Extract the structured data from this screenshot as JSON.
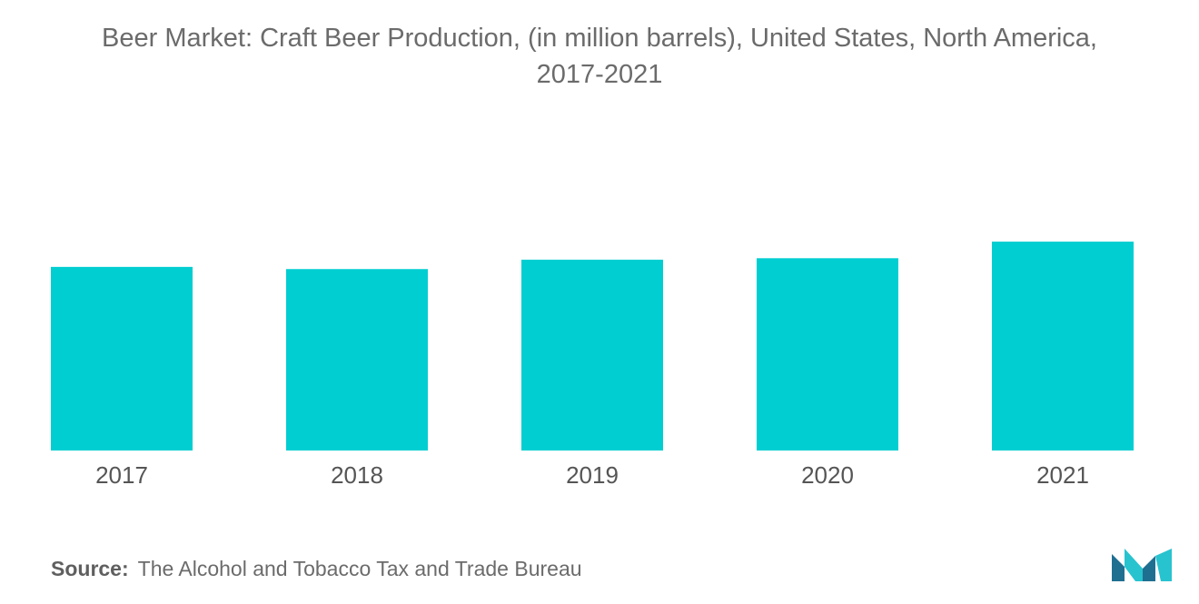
{
  "title": {
    "line1": "Beer Market: Craft Beer Production, (in million barrels), United States, North America,",
    "line2": "2017-2021"
  },
  "source": {
    "label": "Source:",
    "text": "The Alcohol and Tobacco Tax and Trade Bureau"
  },
  "colors": {
    "bar": "#00CED1",
    "text": "#6b6b6b",
    "logo_dark": "#1f6f91",
    "logo_light": "#27c3cf"
  },
  "chart_data": {
    "type": "bar",
    "categories": [
      "2017",
      "2018",
      "2019",
      "2020",
      "2021"
    ],
    "values": [
      25.4,
      25.1,
      26.4,
      26.6,
      28.9
    ],
    "title": "Beer Market: Craft Beer Production, (in million barrels), United States, North America, 2017-2021",
    "xlabel": "",
    "ylabel": "",
    "ylim": [
      0,
      28.9
    ],
    "grid": false,
    "legend": "none"
  }
}
